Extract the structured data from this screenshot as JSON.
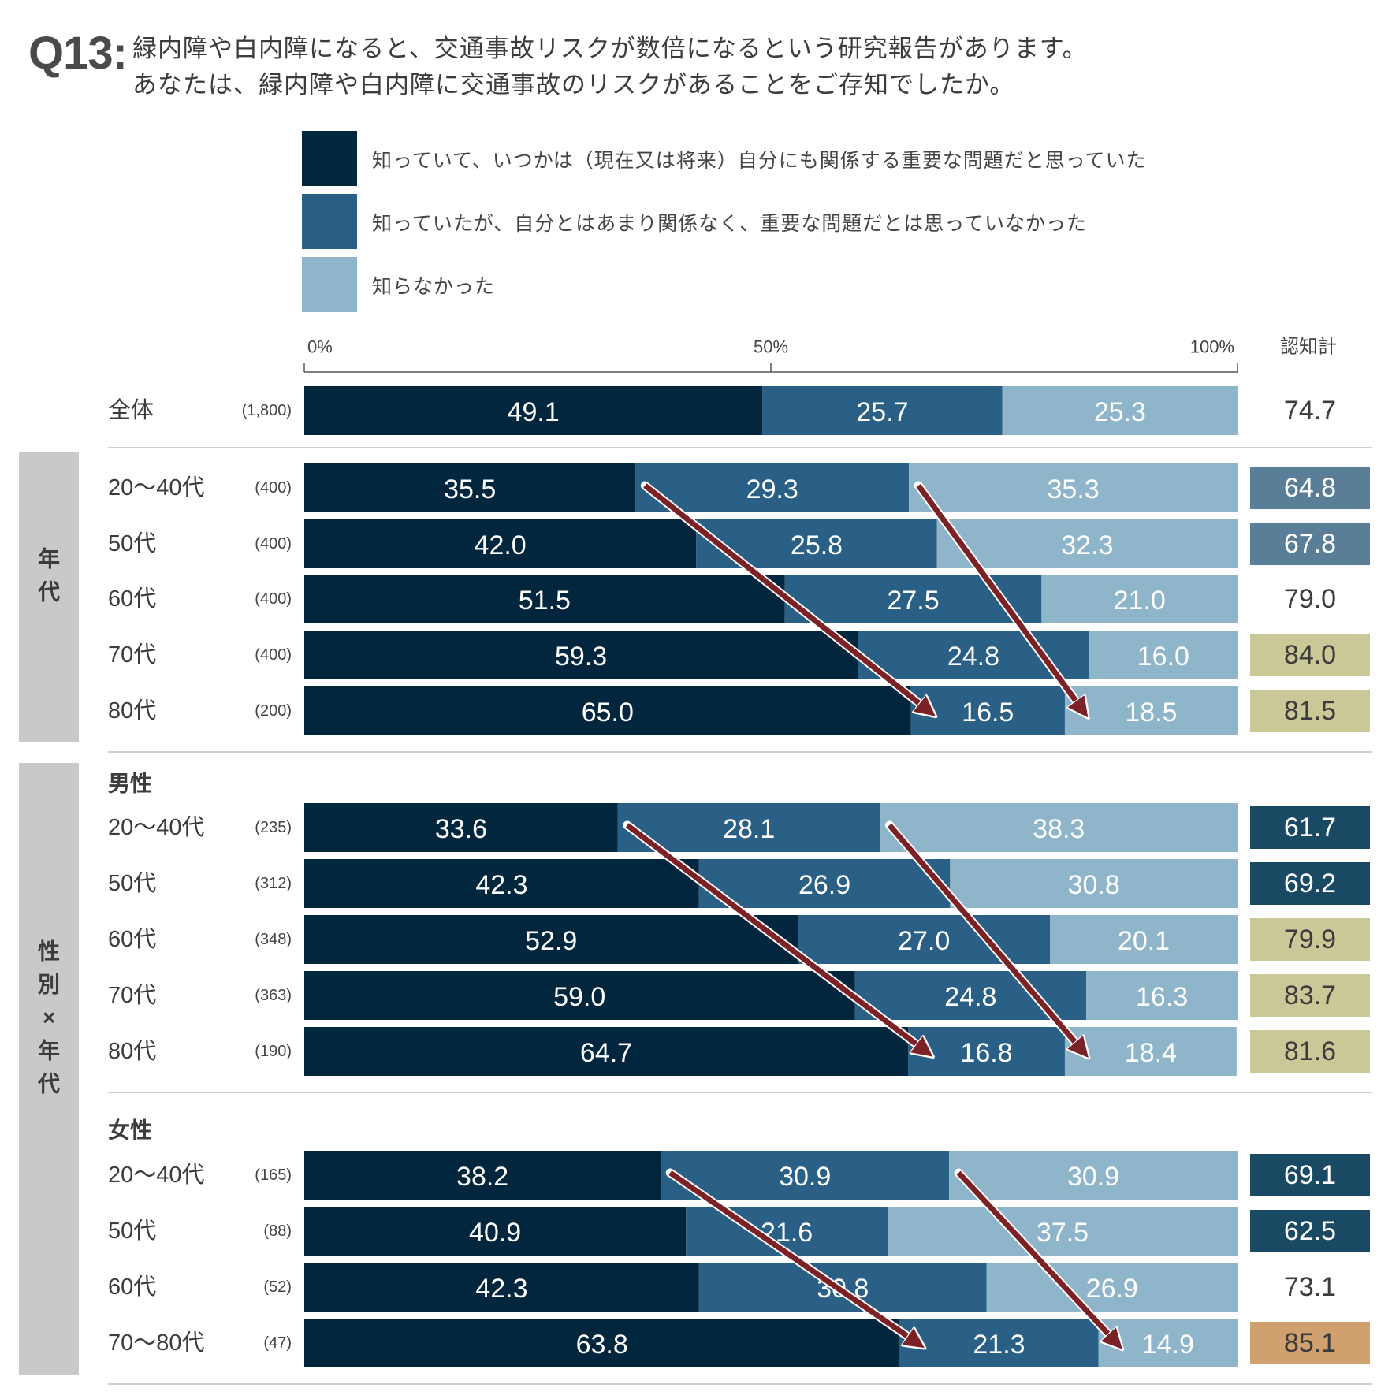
{
  "question": {
    "label": "Q13:",
    "line1": "緑内障や白内障になると、交通事故リスクが数倍になるという研究報告があります。",
    "line2": "あなたは、緑内障や白内障に交通事故のリスクがあることをご存知でしたか。"
  },
  "colors": {
    "series1": "#02263d",
    "series2": "#2a6086",
    "series3": "#8fb5cb",
    "arrow": "#7a2225",
    "group_band": "#c8c9c9",
    "badge_steel": "#5a7e98",
    "badge_navy": "#1a4964",
    "badge_khaki": "#cbc897",
    "badge_tan": "#d0a06f"
  },
  "chart_data": {
    "type": "bar",
    "orientation": "horizontal-stacked-100",
    "legend": [
      "知っていて、いつかは（現在又は将来）自分にも関係する重要な問題だと思っていた",
      "知っていたが、自分とはあまり関係なく、重要な問題だとは思っていなかった",
      "知らなかった"
    ],
    "axis_ticks": [
      "0%",
      "50%",
      "100%"
    ],
    "xlim": [
      0,
      100
    ],
    "total_header": "認知計",
    "groups": [
      {
        "label": "",
        "subheader": "",
        "rows": [
          {
            "label": "全体",
            "n": "(1,800)",
            "values": [
              49.1,
              25.7,
              25.3
            ],
            "total": "74.7",
            "badge": "none"
          }
        ]
      },
      {
        "label": "年代",
        "subheader": "",
        "rows": [
          {
            "label": "20～40代",
            "n": "(400)",
            "values": [
              35.5,
              29.3,
              35.3
            ],
            "total": "64.8",
            "badge": "steel"
          },
          {
            "label": "50代",
            "n": "(400)",
            "values": [
              42.0,
              25.8,
              32.3
            ],
            "total": "67.8",
            "badge": "steel"
          },
          {
            "label": "60代",
            "n": "(400)",
            "values": [
              51.5,
              27.5,
              21.0
            ],
            "total": "79.0",
            "badge": "none"
          },
          {
            "label": "70代",
            "n": "(400)",
            "values": [
              59.3,
              24.8,
              16.0
            ],
            "total": "84.0",
            "badge": "khaki"
          },
          {
            "label": "80代",
            "n": "(200)",
            "values": [
              65.0,
              16.5,
              18.5
            ],
            "total": "81.5",
            "badge": "khaki"
          }
        ]
      },
      {
        "label": "性別×年代",
        "subheader": "男性",
        "rows": [
          {
            "label": "20～40代",
            "n": "(235)",
            "values": [
              33.6,
              28.1,
              38.3
            ],
            "total": "61.7",
            "badge": "navy"
          },
          {
            "label": "50代",
            "n": "(312)",
            "values": [
              42.3,
              26.9,
              30.8
            ],
            "total": "69.2",
            "badge": "navy"
          },
          {
            "label": "60代",
            "n": "(348)",
            "values": [
              52.9,
              27.0,
              20.1
            ],
            "total": "79.9",
            "badge": "khaki"
          },
          {
            "label": "70代",
            "n": "(363)",
            "values": [
              59.0,
              24.8,
              16.3
            ],
            "total": "83.7",
            "badge": "khaki"
          },
          {
            "label": "80代",
            "n": "(190)",
            "values": [
              64.7,
              16.8,
              18.4
            ],
            "total": "81.6",
            "badge": "khaki"
          }
        ]
      },
      {
        "label": "",
        "subheader": "女性",
        "rows": [
          {
            "label": "20～40代",
            "n": "(165)",
            "values": [
              38.2,
              30.9,
              30.9
            ],
            "total": "69.1",
            "badge": "navy"
          },
          {
            "label": "50代",
            "n": "(88)",
            "values": [
              40.9,
              21.6,
              37.5
            ],
            "total": "62.5",
            "badge": "navy"
          },
          {
            "label": "60代",
            "n": "(52)",
            "values": [
              42.3,
              30.8,
              26.9
            ],
            "total": "73.1",
            "badge": "none"
          },
          {
            "label": "70～80代",
            "n": "(47)",
            "values": [
              63.8,
              21.3,
              14.9
            ],
            "total": "85.1",
            "badge": "tan"
          }
        ]
      }
    ]
  }
}
